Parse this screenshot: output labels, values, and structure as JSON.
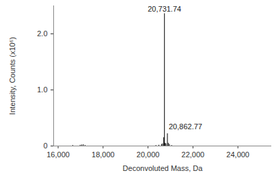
{
  "chart_data": {
    "type": "stem",
    "x_label": "Deconvoluted Mass, Da",
    "y_label": "Intensity, Counts (x10⁶)",
    "x": [
      16650,
      16980,
      17050,
      17120,
      17200,
      20350,
      20480,
      20600,
      20650,
      20700,
      20731.74,
      20760,
      20800,
      20862.77,
      20900,
      20950,
      21050
    ],
    "values": [
      0.01,
      0.015,
      0.02,
      0.025,
      0.01,
      0.01,
      0.015,
      0.03,
      0.04,
      0.15,
      2.36,
      0.05,
      0.04,
      0.22,
      0.05,
      0.03,
      0.01
    ],
    "color": "#000000",
    "xlim": [
      15800,
      25500
    ],
    "xticks": [
      {
        "value": 16000,
        "label": "16,000"
      },
      {
        "value": 18000,
        "label": "18,000"
      },
      {
        "value": 20000,
        "label": "20,000"
      },
      {
        "value": 22000,
        "label": "22,000"
      },
      {
        "value": 24000,
        "label": "24,000"
      }
    ],
    "ylim": [
      0,
      2.5
    ],
    "yticks": [
      0,
      {
        "value": 1,
        "label": "1.0"
      },
      {
        "value": 2,
        "label": "2.0"
      }
    ],
    "grid": false,
    "annotations": [
      {
        "text": "20,731.74",
        "x": 20731.74,
        "y": 2.36
      },
      {
        "text": "20,862.77",
        "x": 20862.77,
        "y": 0.22
      }
    ]
  }
}
